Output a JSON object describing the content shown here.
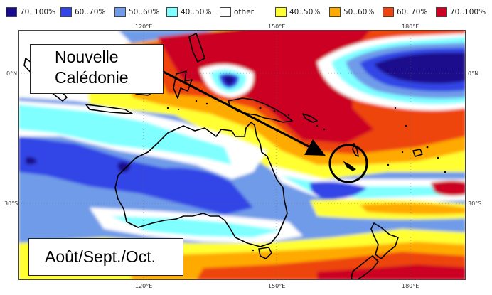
{
  "legend": {
    "items": [
      {
        "label": "70..100%",
        "color": "#1a0a8c"
      },
      {
        "label": "60..70%",
        "color": "#3344e6"
      },
      {
        "label": "50..60%",
        "color": "#6f9be8"
      },
      {
        "label": "40..50%",
        "color": "#7fffff"
      },
      {
        "label": "other",
        "color": "#ffffff"
      },
      {
        "label": "40..50%",
        "color": "#ffff33"
      },
      {
        "label": "50..60%",
        "color": "#ffaa00"
      },
      {
        "label": "60..70%",
        "color": "#ee4411"
      },
      {
        "label": "70..100%",
        "color": "#cc0022"
      }
    ]
  },
  "axes": {
    "top_ticks": [
      "120°E",
      "150°E",
      "180°E"
    ],
    "bottom_ticks": [
      "120°E",
      "150°E",
      "180°E"
    ],
    "left_ticks": [
      "0°N",
      "30°S"
    ],
    "right_ticks": [
      "0°N",
      "30°S"
    ]
  },
  "annotations": {
    "location_label": "Nouvelle Calédonie",
    "season_label": "Août/Sept./Oct."
  },
  "map_regions": [
    "Australia",
    "New Guinea",
    "New Zealand",
    "Tasmania",
    "New Caledonia"
  ]
}
